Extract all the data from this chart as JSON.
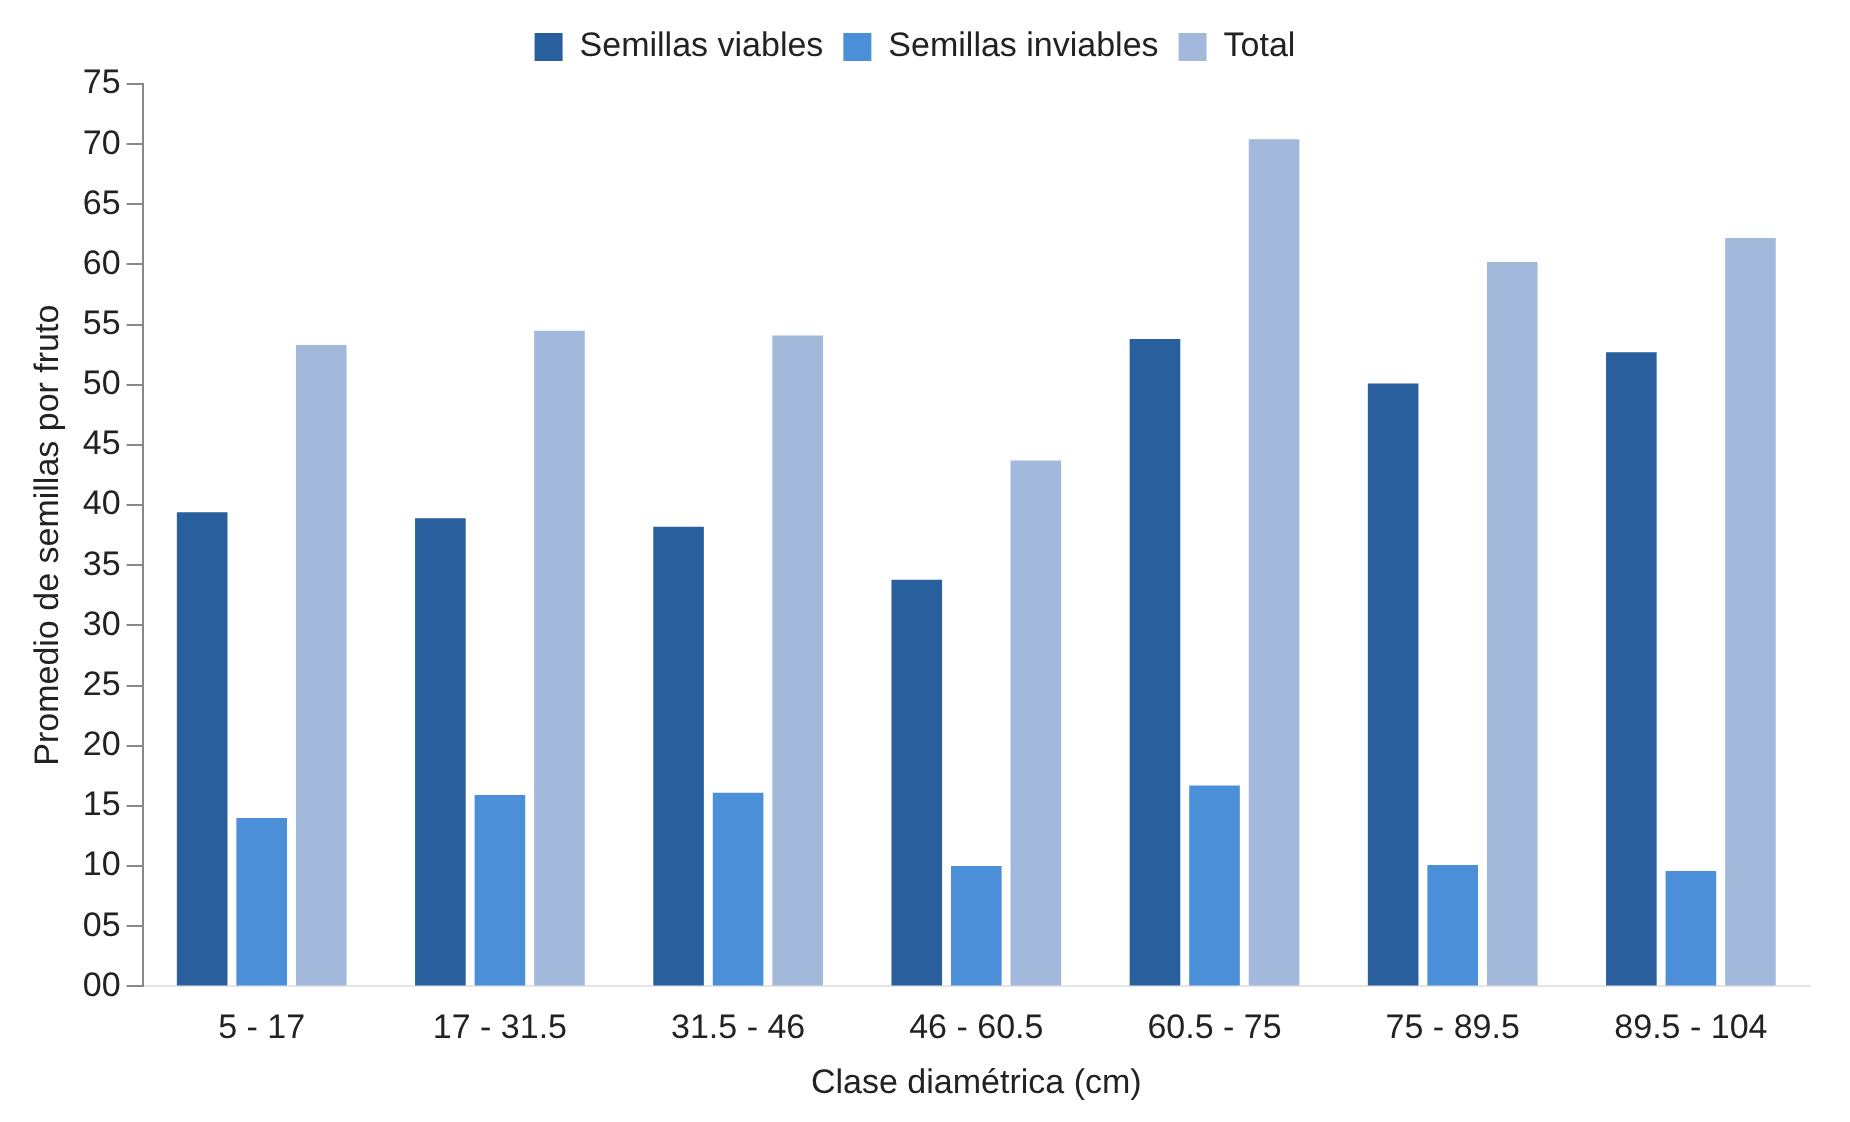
{
  "chart_data": {
    "type": "bar",
    "xlabel": "Clase diamétrica (cm)",
    "ylabel": "Promedio de semillas por fruto",
    "categories": [
      "5 - 17",
      "17 - 31.5",
      "31.5 - 46",
      "46 - 60.5",
      "60.5 - 75",
      "75 - 89.5",
      "89.5 - 104"
    ],
    "series": [
      {
        "name": "Semillas viables",
        "color": "#2a5f9e",
        "values": [
          39.4,
          38.9,
          38.2,
          33.8,
          53.8,
          50.1,
          52.7
        ]
      },
      {
        "name": "Semillas inviables",
        "color": "#4a8fd8",
        "values": [
          14.0,
          15.9,
          16.1,
          10.0,
          16.7,
          10.1,
          9.6
        ]
      },
      {
        "name": "Total",
        "color": "#a3b9dc",
        "values": [
          53.3,
          54.5,
          54.1,
          43.7,
          70.4,
          60.2,
          62.2
        ]
      }
    ],
    "ylim": [
      0,
      75
    ],
    "yticks": [
      {
        "value": 0,
        "label": "00"
      },
      {
        "value": 5,
        "label": "05"
      },
      10,
      15,
      20,
      25,
      30,
      35,
      40,
      45,
      50,
      55,
      60,
      65,
      70,
      75
    ],
    "grid": false,
    "legend": "top"
  }
}
